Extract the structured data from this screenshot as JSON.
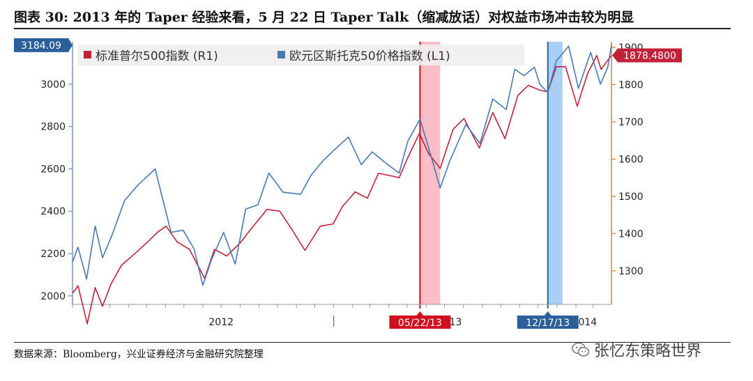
{
  "header": {
    "title": "图表 30:  2013 年的 Taper 经验来看，5 月 22 日 Taper Talk（缩减放话）对权益市场冲击较为明显"
  },
  "footer": {
    "source": "数据来源：Bloomberg，兴业证券经济与金融研究院整理",
    "watermark": "张忆东策略世界",
    "watermark_icon": "wechat-icon"
  },
  "colors": {
    "spx": "#c0223a",
    "stoxx": "#4a78b0",
    "right_axis": "#f07a2a",
    "left_axis": "#7a93c6",
    "band_red": "#f7a8b4",
    "band_blue": "#8cc0f0",
    "flag_red": "#c0223a",
    "flag_blue": "#2c5f9a"
  },
  "chart_data": {
    "type": "line",
    "title": "",
    "legend": {
      "placement": "top-left",
      "entries": [
        "标准普尔500指数 (R1)",
        "欧元区斯托克50价格指数 (L1)"
      ]
    },
    "x_labels": [
      "2012",
      "2013",
      "2014"
    ],
    "x_range": [
      "2011-11-01",
      "2014-03-31"
    ],
    "left_axis": {
      "ticks": [
        2000,
        2200,
        2400,
        2600,
        2800,
        3000
      ],
      "ylim": [
        1960,
        3200
      ]
    },
    "right_axis": {
      "ticks": [
        1300,
        1400,
        1500,
        1600,
        1700,
        1800,
        1900
      ],
      "ylim": [
        1210,
        1915
      ]
    },
    "current_value_labels": {
      "left": "3184.09",
      "right": "1878.4800"
    },
    "event_markers": [
      {
        "label": "05/22/13",
        "date": "2013-05-22",
        "band_end": "2013-06-24",
        "color": "red"
      },
      {
        "label": "12/17/13",
        "date": "2013-12-17",
        "band_end": "2014-01-10",
        "color": "blue"
      }
    ],
    "series": [
      {
        "name": "标准普尔500指数 (R1)",
        "axis": "right",
        "points": [
          [
            "2011-11-01",
            1240
          ],
          [
            "2011-11-10",
            1260
          ],
          [
            "2011-11-25",
            1158
          ],
          [
            "2011-12-08",
            1255
          ],
          [
            "2011-12-20",
            1205
          ],
          [
            "2012-01-03",
            1265
          ],
          [
            "2012-01-20",
            1315
          ],
          [
            "2012-02-10",
            1345
          ],
          [
            "2012-03-01",
            1375
          ],
          [
            "2012-03-20",
            1405
          ],
          [
            "2012-04-02",
            1420
          ],
          [
            "2012-04-20",
            1378
          ],
          [
            "2012-05-10",
            1358
          ],
          [
            "2012-06-04",
            1280
          ],
          [
            "2012-06-20",
            1358
          ],
          [
            "2012-07-10",
            1340
          ],
          [
            "2012-08-01",
            1375
          ],
          [
            "2012-08-20",
            1415
          ],
          [
            "2012-09-14",
            1465
          ],
          [
            "2012-10-05",
            1460
          ],
          [
            "2012-10-25",
            1410
          ],
          [
            "2012-11-15",
            1355
          ],
          [
            "2012-12-10",
            1420
          ],
          [
            "2012-12-31",
            1426
          ],
          [
            "2013-01-15",
            1472
          ],
          [
            "2013-02-05",
            1512
          ],
          [
            "2013-02-25",
            1495
          ],
          [
            "2013-03-15",
            1562
          ],
          [
            "2013-04-05",
            1555
          ],
          [
            "2013-04-18",
            1550
          ],
          [
            "2013-05-01",
            1600
          ],
          [
            "2013-05-21",
            1669
          ],
          [
            "2013-06-05",
            1615
          ],
          [
            "2013-06-24",
            1575
          ],
          [
            "2013-07-15",
            1680
          ],
          [
            "2013-08-02",
            1709
          ],
          [
            "2013-08-27",
            1630
          ],
          [
            "2013-09-18",
            1725
          ],
          [
            "2013-10-08",
            1655
          ],
          [
            "2013-10-29",
            1771
          ],
          [
            "2013-11-15",
            1798
          ],
          [
            "2013-12-04",
            1785
          ],
          [
            "2013-12-17",
            1781
          ],
          [
            "2013-12-31",
            1848
          ],
          [
            "2014-01-15",
            1848
          ],
          [
            "2014-02-03",
            1742
          ],
          [
            "2014-02-20",
            1830
          ],
          [
            "2014-03-07",
            1878
          ],
          [
            "2014-03-14",
            1841
          ],
          [
            "2014-03-25",
            1865
          ],
          [
            "2014-03-31",
            1878
          ]
        ]
      },
      {
        "name": "欧元区斯托克50价格指数 (L1)",
        "axis": "left",
        "points": [
          [
            "2011-11-01",
            2160
          ],
          [
            "2011-11-10",
            2230
          ],
          [
            "2011-11-24",
            2080
          ],
          [
            "2011-12-08",
            2330
          ],
          [
            "2011-12-20",
            2180
          ],
          [
            "2012-01-05",
            2290
          ],
          [
            "2012-01-25",
            2450
          ],
          [
            "2012-02-15",
            2520
          ],
          [
            "2012-03-15",
            2600
          ],
          [
            "2012-04-10",
            2300
          ],
          [
            "2012-04-30",
            2310
          ],
          [
            "2012-05-18",
            2220
          ],
          [
            "2012-06-01",
            2050
          ],
          [
            "2012-06-15",
            2170
          ],
          [
            "2012-07-05",
            2300
          ],
          [
            "2012-07-24",
            2150
          ],
          [
            "2012-08-10",
            2410
          ],
          [
            "2012-08-30",
            2430
          ],
          [
            "2012-09-17",
            2580
          ],
          [
            "2012-10-10",
            2490
          ],
          [
            "2012-11-08",
            2480
          ],
          [
            "2012-11-25",
            2570
          ],
          [
            "2012-12-15",
            2640
          ],
          [
            "2013-01-02",
            2690
          ],
          [
            "2013-01-25",
            2750
          ],
          [
            "2013-02-15",
            2620
          ],
          [
            "2013-03-05",
            2680
          ],
          [
            "2013-03-28",
            2625
          ],
          [
            "2013-04-18",
            2580
          ],
          [
            "2013-05-02",
            2730
          ],
          [
            "2013-05-22",
            2835
          ],
          [
            "2013-06-05",
            2700
          ],
          [
            "2013-06-24",
            2510
          ],
          [
            "2013-07-10",
            2640
          ],
          [
            "2013-08-05",
            2810
          ],
          [
            "2013-08-28",
            2720
          ],
          [
            "2013-09-18",
            2930
          ],
          [
            "2013-10-10",
            2880
          ],
          [
            "2013-10-24",
            3070
          ],
          [
            "2013-11-08",
            3040
          ],
          [
            "2013-11-25",
            3080
          ],
          [
            "2013-12-04",
            3000
          ],
          [
            "2013-12-17",
            2960
          ],
          [
            "2013-12-31",
            3110
          ],
          [
            "2014-01-20",
            3180
          ],
          [
            "2014-02-05",
            2980
          ],
          [
            "2014-02-25",
            3150
          ],
          [
            "2014-03-13",
            3000
          ],
          [
            "2014-03-25",
            3080
          ],
          [
            "2014-03-31",
            3184.09
          ]
        ]
      }
    ]
  }
}
